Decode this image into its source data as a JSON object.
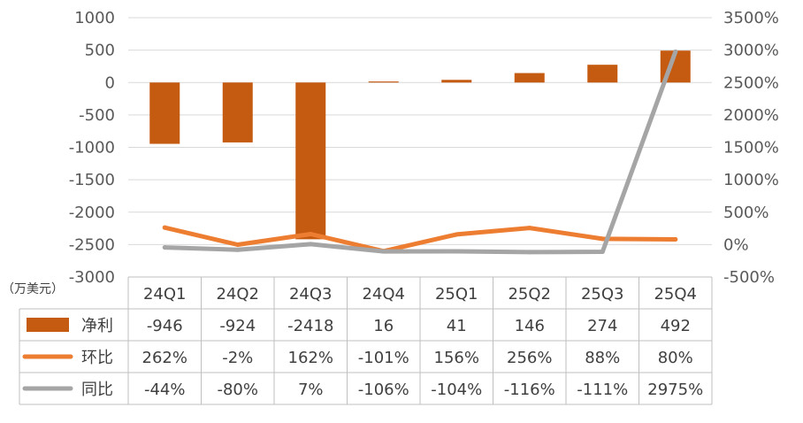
{
  "unit_label": "（万美元）",
  "chart_data": {
    "type": "bar",
    "categories": [
      "24Q1",
      "24Q2",
      "24Q3",
      "24Q4",
      "25Q1",
      "25Q2",
      "25Q3",
      "25Q4"
    ],
    "series": [
      {
        "name": "净利",
        "kind": "bar",
        "axis": "left",
        "color": "#C55A11",
        "values": [
          -946,
          -924,
          -2418,
          16,
          41,
          146,
          274,
          492
        ],
        "labels": [
          "-946",
          "-924",
          "-2418",
          "16",
          "41",
          "146",
          "274",
          "492"
        ]
      },
      {
        "name": "环比",
        "kind": "line",
        "axis": "right",
        "color": "#ED7D31",
        "values": [
          262,
          -2,
          162,
          -101,
          156,
          256,
          88,
          80
        ],
        "labels": [
          "262%",
          "-2%",
          "162%",
          "-101%",
          "156%",
          "256%",
          "88%",
          "80%"
        ]
      },
      {
        "name": "同比",
        "kind": "line",
        "axis": "right",
        "color": "#A5A5A5",
        "values": [
          -44,
          -80,
          7,
          -106,
          -104,
          -116,
          -111,
          2975
        ],
        "labels": [
          "-44%",
          "-80%",
          "7%",
          "-106%",
          "-104%",
          "-116%",
          "-111%",
          "2975%"
        ]
      }
    ],
    "y_left": {
      "min": -3000,
      "max": 1000,
      "step": 500,
      "ticks": [
        "1000",
        "500",
        "0",
        "-500",
        "-1000",
        "-1500",
        "-2000",
        "-2500",
        "-3000"
      ]
    },
    "y_right": {
      "min": -500,
      "max": 3500,
      "step": 500,
      "ticks": [
        "3500%",
        "3000%",
        "2500%",
        "2000%",
        "1500%",
        "1000%",
        "500%",
        "0%",
        "-500%"
      ]
    },
    "grid": true,
    "legend": "data-table"
  }
}
